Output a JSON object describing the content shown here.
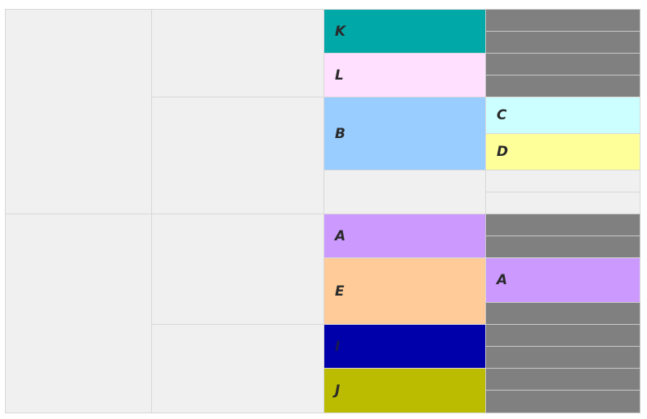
{
  "blocks": {
    "column3": [
      "K",
      "L",
      "B",
      "A",
      "E",
      "I",
      "J"
    ],
    "column4": [
      "C",
      "D",
      "A"
    ]
  }
}
